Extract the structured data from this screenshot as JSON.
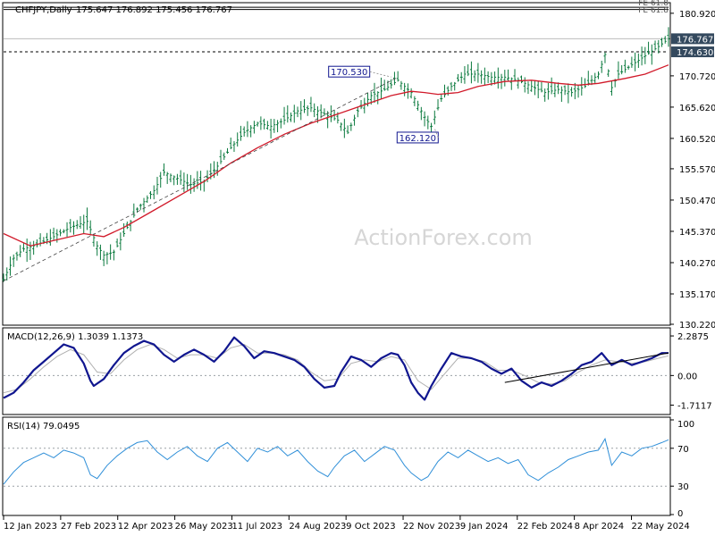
{
  "header": {
    "symbol": "CHFJPY,Daily",
    "ohlc": "175.647 176.892 175.456 176.767"
  },
  "watermark": "ActionForex.com",
  "colors": {
    "bars": "#0b7a3e",
    "sma": "#d11a2a",
    "macd": "#10168f",
    "signal": "#b0b0b0",
    "rsi": "#2f8fd8",
    "price_label_bg": "#34495e",
    "annotation_border": "#10168f"
  },
  "chart_data": [
    {
      "type": "line",
      "panel": "price",
      "ylim": [
        130.22,
        182.5
      ],
      "y_ticks": [
        "180.920",
        "176.767",
        "174.630",
        "170.720",
        "165.620",
        "160.520",
        "155.570",
        "150.470",
        "145.370",
        "140.270",
        "135.170",
        "130.220"
      ],
      "x_ticks": [
        "12 Jan 2023",
        "27 Feb 2023",
        "12 Apr 2023",
        "26 May 2023",
        "11 Jul 2023",
        "24 Aug 2023",
        "9 Oct 2023",
        "22 Nov 2023",
        "9 Jan 2024",
        "22 Feb 2024",
        "8 Apr 2024",
        "22 May 2024"
      ],
      "price_path": [
        [
          0,
          137.5
        ],
        [
          3,
          141
        ],
        [
          6,
          142.5
        ],
        [
          10,
          143.2
        ],
        [
          15,
          144.5
        ],
        [
          20,
          146
        ],
        [
          25,
          147
        ],
        [
          28,
          143
        ],
        [
          30,
          141.5
        ],
        [
          33,
          142
        ],
        [
          36,
          145
        ],
        [
          40,
          149
        ],
        [
          45,
          152
        ],
        [
          48,
          155
        ],
        [
          52,
          154
        ],
        [
          56,
          153
        ],
        [
          60,
          153.5
        ],
        [
          64,
          156
        ],
        [
          68,
          159
        ],
        [
          72,
          161.5
        ],
        [
          76,
          163
        ],
        [
          80,
          162.5
        ],
        [
          84,
          163.5
        ],
        [
          88,
          165
        ],
        [
          92,
          165.5
        ],
        [
          96,
          164.5
        ],
        [
          100,
          163.5
        ],
        [
          103,
          161.5
        ],
        [
          106,
          165
        ],
        [
          110,
          167.5
        ],
        [
          114,
          168.5
        ],
        [
          118,
          170
        ],
        [
          122,
          168
        ],
        [
          126,
          164
        ],
        [
          128,
          162.5
        ],
        [
          131,
          167
        ],
        [
          134,
          169
        ],
        [
          138,
          171
        ],
        [
          142,
          171
        ],
        [
          146,
          170.5
        ],
        [
          150,
          170.5
        ],
        [
          154,
          170
        ],
        [
          158,
          169
        ],
        [
          162,
          168
        ],
        [
          166,
          168.5
        ],
        [
          170,
          168
        ],
        [
          174,
          169
        ],
        [
          178,
          171
        ],
        [
          180,
          174.2
        ],
        [
          182,
          168.8
        ],
        [
          184,
          171
        ],
        [
          188,
          172.5
        ],
        [
          192,
          174
        ],
        [
          196,
          175.5
        ],
        [
          199,
          176.77
        ]
      ],
      "sma_path": [
        [
          0,
          145
        ],
        [
          8,
          143
        ],
        [
          16,
          144
        ],
        [
          24,
          145
        ],
        [
          30,
          144.5
        ],
        [
          36,
          146
        ],
        [
          44,
          148.5
        ],
        [
          52,
          151
        ],
        [
          60,
          153.5
        ],
        [
          68,
          156.5
        ],
        [
          76,
          159
        ],
        [
          84,
          161.2
        ],
        [
          92,
          163
        ],
        [
          100,
          164.5
        ],
        [
          108,
          166
        ],
        [
          116,
          167.5
        ],
        [
          122,
          168.2
        ],
        [
          126,
          168
        ],
        [
          130,
          167.7
        ],
        [
          136,
          168
        ],
        [
          142,
          169
        ],
        [
          150,
          169.8
        ],
        [
          158,
          170
        ],
        [
          166,
          169.5
        ],
        [
          172,
          169.2
        ],
        [
          178,
          169.5
        ],
        [
          186,
          170.3
        ],
        [
          192,
          171
        ],
        [
          199,
          172.5
        ]
      ],
      "annotations": [
        {
          "label": "170.530",
          "x": 116,
          "y": 170.53
        },
        {
          "label": "162.120",
          "x": 129,
          "y": 162.12
        }
      ],
      "trend_line": [
        [
          0,
          137.3
        ],
        [
          118,
          170.5
        ]
      ],
      "fib_label": "FE 61.8",
      "fib_level": 181.9,
      "fib_label2": "FE 61.8",
      "last_price": "176.767",
      "resistance": "174.630",
      "resistance_value": 174.63,
      "sma_label": ""
    },
    {
      "type": "line",
      "panel": "macd",
      "title": "MACD(12,26,9) 1.3039 1.1373",
      "ylim": [
        -2.15,
        2.6
      ],
      "y_ticks": [
        "2.2875",
        "0.00",
        "-1.7117"
      ],
      "zero": 0,
      "macd_path": [
        [
          0,
          -1.3
        ],
        [
          3,
          -1.0
        ],
        [
          6,
          -0.4
        ],
        [
          9,
          0.3
        ],
        [
          12,
          0.8
        ],
        [
          15,
          1.3
        ],
        [
          18,
          1.8
        ],
        [
          21,
          1.6
        ],
        [
          24,
          0.7
        ],
        [
          26,
          -0.3
        ],
        [
          27,
          -0.6
        ],
        [
          30,
          -0.2
        ],
        [
          33,
          0.6
        ],
        [
          36,
          1.3
        ],
        [
          39,
          1.7
        ],
        [
          42,
          2.0
        ],
        [
          45,
          1.8
        ],
        [
          48,
          1.2
        ],
        [
          51,
          0.8
        ],
        [
          54,
          1.2
        ],
        [
          57,
          1.5
        ],
        [
          60,
          1.2
        ],
        [
          63,
          0.8
        ],
        [
          66,
          1.4
        ],
        [
          69,
          2.2
        ],
        [
          72,
          1.7
        ],
        [
          75,
          1.0
        ],
        [
          78,
          1.4
        ],
        [
          81,
          1.3
        ],
        [
          84,
          1.1
        ],
        [
          87,
          0.9
        ],
        [
          90,
          0.5
        ],
        [
          93,
          -0.2
        ],
        [
          96,
          -0.7
        ],
        [
          99,
          -0.6
        ],
        [
          101,
          0.2
        ],
        [
          104,
          1.1
        ],
        [
          107,
          0.9
        ],
        [
          110,
          0.5
        ],
        [
          113,
          1.0
        ],
        [
          116,
          1.3
        ],
        [
          118,
          1.2
        ],
        [
          120,
          0.6
        ],
        [
          122,
          -0.4
        ],
        [
          124,
          -1.0
        ],
        [
          126,
          -1.4
        ],
        [
          128,
          -0.6
        ],
        [
          131,
          0.4
        ],
        [
          134,
          1.3
        ],
        [
          137,
          1.1
        ],
        [
          140,
          1.0
        ],
        [
          143,
          0.8
        ],
        [
          146,
          0.4
        ],
        [
          149,
          0.1
        ],
        [
          152,
          0.4
        ],
        [
          155,
          -0.3
        ],
        [
          158,
          -0.7
        ],
        [
          161,
          -0.4
        ],
        [
          164,
          -0.6
        ],
        [
          167,
          -0.3
        ],
        [
          170,
          0.1
        ],
        [
          173,
          0.6
        ],
        [
          176,
          0.8
        ],
        [
          179,
          1.3
        ],
        [
          182,
          0.6
        ],
        [
          185,
          0.9
        ],
        [
          188,
          0.6
        ],
        [
          191,
          0.8
        ],
        [
          194,
          1.0
        ],
        [
          197,
          1.3
        ],
        [
          199,
          1.3
        ]
      ],
      "signal_path": [
        [
          0,
          -1.0
        ],
        [
          4,
          -0.8
        ],
        [
          8,
          -0.2
        ],
        [
          12,
          0.5
        ],
        [
          16,
          1.1
        ],
        [
          20,
          1.5
        ],
        [
          24,
          1.2
        ],
        [
          28,
          0.2
        ],
        [
          32,
          0.1
        ],
        [
          36,
          0.9
        ],
        [
          40,
          1.5
        ],
        [
          44,
          1.8
        ],
        [
          48,
          1.5
        ],
        [
          52,
          1.0
        ],
        [
          56,
          1.2
        ],
        [
          60,
          1.2
        ],
        [
          64,
          1.0
        ],
        [
          68,
          1.6
        ],
        [
          72,
          1.8
        ],
        [
          76,
          1.3
        ],
        [
          80,
          1.3
        ],
        [
          84,
          1.2
        ],
        [
          88,
          0.9
        ],
        [
          92,
          0.2
        ],
        [
          96,
          -0.3
        ],
        [
          100,
          -0.2
        ],
        [
          104,
          0.7
        ],
        [
          108,
          0.9
        ],
        [
          112,
          0.8
        ],
        [
          116,
          1.1
        ],
        [
          120,
          0.9
        ],
        [
          124,
          -0.3
        ],
        [
          128,
          -0.8
        ],
        [
          132,
          0.1
        ],
        [
          136,
          1.0
        ],
        [
          140,
          1.0
        ],
        [
          144,
          0.8
        ],
        [
          148,
          0.3
        ],
        [
          152,
          0.3
        ],
        [
          156,
          0.0
        ],
        [
          160,
          -0.4
        ],
        [
          164,
          -0.5
        ],
        [
          168,
          -0.3
        ],
        [
          172,
          0.2
        ],
        [
          176,
          0.6
        ],
        [
          180,
          0.9
        ],
        [
          184,
          0.8
        ],
        [
          188,
          0.7
        ],
        [
          192,
          0.8
        ],
        [
          196,
          1.0
        ],
        [
          199,
          1.14
        ]
      ],
      "trend_line": [
        [
          150,
          -0.4
        ],
        [
          199,
          1.3
        ]
      ]
    },
    {
      "type": "line",
      "panel": "rsi",
      "title": "RSI(14) 79.0495",
      "ylim": [
        0,
        100
      ],
      "y_ticks": [
        "100",
        "70",
        "30",
        "0"
      ],
      "dashed_levels": [
        70,
        30
      ],
      "rsi_path": [
        [
          0,
          32
        ],
        [
          3,
          45
        ],
        [
          6,
          55
        ],
        [
          9,
          60
        ],
        [
          12,
          65
        ],
        [
          15,
          60
        ],
        [
          18,
          68
        ],
        [
          21,
          65
        ],
        [
          24,
          60
        ],
        [
          26,
          42
        ],
        [
          28,
          38
        ],
        [
          31,
          52
        ],
        [
          34,
          62
        ],
        [
          37,
          70
        ],
        [
          40,
          76
        ],
        [
          43,
          78
        ],
        [
          46,
          66
        ],
        [
          49,
          58
        ],
        [
          52,
          66
        ],
        [
          55,
          72
        ],
        [
          58,
          62
        ],
        [
          61,
          56
        ],
        [
          64,
          70
        ],
        [
          67,
          76
        ],
        [
          70,
          66
        ],
        [
          73,
          56
        ],
        [
          76,
          70
        ],
        [
          79,
          66
        ],
        [
          82,
          72
        ],
        [
          85,
          62
        ],
        [
          88,
          68
        ],
        [
          91,
          56
        ],
        [
          94,
          46
        ],
        [
          97,
          40
        ],
        [
          99,
          50
        ],
        [
          102,
          62
        ],
        [
          105,
          68
        ],
        [
          108,
          56
        ],
        [
          111,
          64
        ],
        [
          114,
          72
        ],
        [
          117,
          68
        ],
        [
          120,
          52
        ],
        [
          122,
          44
        ],
        [
          125,
          36
        ],
        [
          127,
          40
        ],
        [
          130,
          56
        ],
        [
          133,
          66
        ],
        [
          136,
          60
        ],
        [
          139,
          68
        ],
        [
          142,
          62
        ],
        [
          145,
          56
        ],
        [
          148,
          60
        ],
        [
          151,
          54
        ],
        [
          154,
          58
        ],
        [
          157,
          42
        ],
        [
          160,
          36
        ],
        [
          163,
          44
        ],
        [
          166,
          50
        ],
        [
          169,
          58
        ],
        [
          172,
          62
        ],
        [
          175,
          66
        ],
        [
          178,
          68
        ],
        [
          180,
          80
        ],
        [
          182,
          52
        ],
        [
          185,
          66
        ],
        [
          188,
          62
        ],
        [
          191,
          70
        ],
        [
          194,
          72
        ],
        [
          197,
          76
        ],
        [
          199,
          79
        ]
      ]
    }
  ]
}
